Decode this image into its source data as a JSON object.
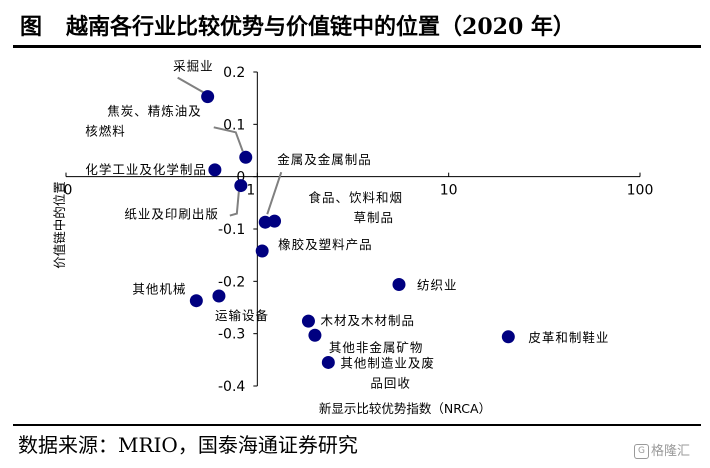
{
  "header": {
    "prefix": "图",
    "title": "越南各行业比较优势与价值链中的位置（2020 年）"
  },
  "footer": {
    "source": "数据来源：MRIO，国泰海通证券研究"
  },
  "watermark": {
    "icon_glyph": "G",
    "text": "格隆汇"
  },
  "colors": {
    "marker": "#000080",
    "axis": "#000000",
    "leader_line": "#808080"
  },
  "chart_data": {
    "type": "scatter",
    "title": "",
    "xlabel": "新显示比较优势指数（NRCA）",
    "ylabel": "价值链中的位置",
    "x_scale": "log",
    "xlim": [
      0.1,
      100
    ],
    "ylim": [
      -0.4,
      0.2
    ],
    "x_ticks": [
      {
        "value": 0.1,
        "label": "0"
      },
      {
        "value": 1,
        "label": "1"
      },
      {
        "value": 10,
        "label": "10"
      },
      {
        "value": 100,
        "label": "100"
      }
    ],
    "y_ticks": [
      {
        "value": 0.2,
        "label": "0.2"
      },
      {
        "value": 0.1,
        "label": "0.1"
      },
      {
        "value": 0,
        "label": "0"
      },
      {
        "value": -0.1,
        "label": "-0.1"
      },
      {
        "value": -0.2,
        "label": "-0.2"
      },
      {
        "value": -0.3,
        "label": "-0.3"
      },
      {
        "value": -0.4,
        "label": "-0.4"
      }
    ],
    "grid": false,
    "legend": "none",
    "points": [
      {
        "label": "采掘业",
        "x": 0.55,
        "y": 0.153
      },
      {
        "label": "焦炭、精炼油及核燃料",
        "x": 0.87,
        "y": 0.037
      },
      {
        "label": "化学工业及化学制品",
        "x": 0.6,
        "y": 0.013
      },
      {
        "label": "纸业及印刷出版",
        "x": 0.82,
        "y": -0.017
      },
      {
        "label": "金属及金属制品",
        "x": 1.1,
        "y": -0.087
      },
      {
        "label": "食品、饮料和烟草制品",
        "x": 1.23,
        "y": -0.085
      },
      {
        "label": "橡胶及塑料产品",
        "x": 1.06,
        "y": -0.142
      },
      {
        "label": "纺织业",
        "x": 5.5,
        "y": -0.206
      },
      {
        "label": "其他机械",
        "x": 0.48,
        "y": -0.237
      },
      {
        "label": "运输设备",
        "x": 0.63,
        "y": -0.228
      },
      {
        "label": "木材及木材制品",
        "x": 1.85,
        "y": -0.276
      },
      {
        "label": "其他非金属矿物",
        "x": 2.0,
        "y": -0.303
      },
      {
        "label": "皮革和制鞋业",
        "x": 20.5,
        "y": -0.306
      },
      {
        "label": "其他制造业及废品回收",
        "x": 2.35,
        "y": -0.355
      }
    ]
  }
}
